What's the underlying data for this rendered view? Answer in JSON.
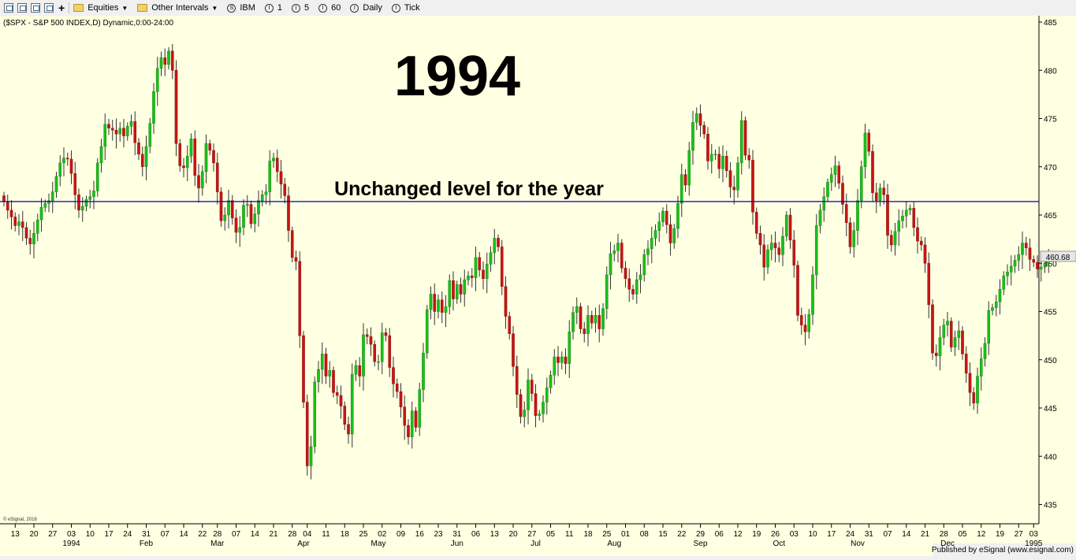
{
  "toolbar": {
    "items": [
      {
        "label": "Equities",
        "icon": "folder-icon",
        "dropdown": true
      },
      {
        "label": "Other Intervals",
        "icon": "folder-icon",
        "dropdown": true
      },
      {
        "label": "IBM",
        "icon": "symbol-circle-icon",
        "glyph": "S"
      },
      {
        "label": "1",
        "icon": "interval-circle-icon",
        "glyph": "I"
      },
      {
        "label": "5",
        "icon": "interval-circle-icon",
        "glyph": "I"
      },
      {
        "label": "60",
        "icon": "interval-circle-icon",
        "glyph": "I"
      },
      {
        "label": "Daily",
        "icon": "interval-circle-icon",
        "glyph": "I"
      },
      {
        "label": "Tick",
        "icon": "interval-circle-icon",
        "glyph": "I"
      }
    ]
  },
  "chart_data": {
    "type": "candlestick",
    "header": "($SPX - S&P 500 INDEX,D) Dynamic,0:00-24:00",
    "title": "1994",
    "annotation": "Unchanged level for the year",
    "reference_line": 466.4,
    "last_price": "460.68",
    "watermark": "© eSignal, 2016",
    "footer": "Published by eSignal (www.esignal.com)",
    "ylim": [
      433,
      485
    ],
    "y_ticks": [
      435,
      440,
      445,
      450,
      455,
      460,
      465,
      470,
      475,
      480,
      485
    ],
    "day_ticks": [
      {
        "i": 3,
        "label": "13"
      },
      {
        "i": 8,
        "label": "20"
      },
      {
        "i": 13,
        "label": "27"
      },
      {
        "i": 18,
        "label": "03"
      },
      {
        "i": 23,
        "label": "10"
      },
      {
        "i": 28,
        "label": "17"
      },
      {
        "i": 33,
        "label": "24"
      },
      {
        "i": 38,
        "label": "31"
      },
      {
        "i": 43,
        "label": "07"
      },
      {
        "i": 48,
        "label": "14"
      },
      {
        "i": 53,
        "label": "22"
      },
      {
        "i": 57,
        "label": "28"
      },
      {
        "i": 62,
        "label": "07"
      },
      {
        "i": 67,
        "label": "14"
      },
      {
        "i": 72,
        "label": "21"
      },
      {
        "i": 77,
        "label": "28"
      },
      {
        "i": 81,
        "label": "04"
      },
      {
        "i": 86,
        "label": "11"
      },
      {
        "i": 91,
        "label": "18"
      },
      {
        "i": 96,
        "label": "25"
      },
      {
        "i": 101,
        "label": "02"
      },
      {
        "i": 106,
        "label": "09"
      },
      {
        "i": 111,
        "label": "16"
      },
      {
        "i": 116,
        "label": "23"
      },
      {
        "i": 121,
        "label": "31"
      },
      {
        "i": 126,
        "label": "06"
      },
      {
        "i": 131,
        "label": "13"
      },
      {
        "i": 136,
        "label": "20"
      },
      {
        "i": 141,
        "label": "27"
      },
      {
        "i": 146,
        "label": "05"
      },
      {
        "i": 151,
        "label": "11"
      },
      {
        "i": 156,
        "label": "18"
      },
      {
        "i": 161,
        "label": "25"
      },
      {
        "i": 166,
        "label": "01"
      },
      {
        "i": 171,
        "label": "08"
      },
      {
        "i": 176,
        "label": "15"
      },
      {
        "i": 181,
        "label": "22"
      },
      {
        "i": 186,
        "label": "29"
      },
      {
        "i": 191,
        "label": "06"
      },
      {
        "i": 196,
        "label": "12"
      },
      {
        "i": 201,
        "label": "19"
      },
      {
        "i": 206,
        "label": "26"
      },
      {
        "i": 211,
        "label": "03"
      },
      {
        "i": 216,
        "label": "10"
      },
      {
        "i": 221,
        "label": "17"
      },
      {
        "i": 226,
        "label": "24"
      },
      {
        "i": 231,
        "label": "31"
      },
      {
        "i": 236,
        "label": "07"
      },
      {
        "i": 241,
        "label": "14"
      },
      {
        "i": 246,
        "label": "21"
      },
      {
        "i": 251,
        "label": "28"
      },
      {
        "i": 256,
        "label": "05"
      },
      {
        "i": 261,
        "label": "12"
      },
      {
        "i": 266,
        "label": "19"
      },
      {
        "i": 271,
        "label": "27"
      },
      {
        "i": 275,
        "label": "03"
      }
    ],
    "period_ticks": [
      {
        "i": 18,
        "label": "1994"
      },
      {
        "i": 38,
        "label": "Feb"
      },
      {
        "i": 57,
        "label": "Mar"
      },
      {
        "i": 80,
        "label": "Apr"
      },
      {
        "i": 100,
        "label": "May"
      },
      {
        "i": 121,
        "label": "Jun"
      },
      {
        "i": 142,
        "label": "Jul"
      },
      {
        "i": 163,
        "label": "Aug"
      },
      {
        "i": 186,
        "label": "Sep"
      },
      {
        "i": 207,
        "label": "Oct"
      },
      {
        "i": 228,
        "label": "Nov"
      },
      {
        "i": 252,
        "label": "Dec"
      },
      {
        "i": 275,
        "label": "1995"
      }
    ],
    "closes": [
      466.4,
      465.5,
      464.8,
      463.9,
      464.3,
      463.7,
      462.6,
      462.0,
      463.1,
      464.5,
      465.8,
      466.2,
      466.5,
      467.4,
      469.0,
      470.4,
      470.9,
      470.8,
      469.3,
      467.1,
      465.5,
      465.9,
      466.6,
      466.9,
      467.5,
      470.4,
      472.1,
      474.4,
      474.0,
      473.8,
      473.4,
      474.0,
      473.2,
      474.2,
      474.7,
      472.5,
      471.3,
      470.0,
      472.1,
      474.5,
      477.8,
      480.2,
      481.3,
      480.6,
      482.0,
      480.0,
      472.4,
      470.1,
      469.9,
      471.1,
      472.9,
      469.1,
      467.8,
      469.5,
      472.4,
      471.7,
      470.4,
      467.4,
      464.4,
      465.0,
      466.5,
      464.7,
      463.2,
      463.7,
      466.0,
      466.1,
      464.1,
      465.1,
      466.5,
      467.1,
      467.4,
      470.6,
      470.9,
      469.5,
      468.2,
      467.0,
      463.4,
      460.6,
      460.2,
      452.5,
      445.6,
      439.0,
      441.0,
      447.7,
      449.0,
      450.6,
      448.3,
      448.9,
      446.6,
      446.3,
      445.2,
      443.3,
      442.3,
      448.5,
      449.4,
      448.3,
      452.6,
      452.4,
      451.6,
      449.8,
      449.8,
      452.8,
      452.5,
      449.2,
      447.5,
      446.7,
      445.1,
      443.2,
      442.0,
      444.7,
      443.0,
      446.9,
      450.7,
      455.2,
      456.8,
      455.0,
      456.2,
      454.9,
      455.5,
      458.2,
      456.3,
      457.8,
      456.8,
      458.3,
      458.7,
      458.5,
      460.6,
      459.3,
      458.4,
      459.9,
      461.1,
      462.6,
      461.7,
      457.6,
      454.5,
      452.7,
      449.3,
      446.4,
      444.1,
      444.8,
      447.9,
      446.5,
      444.2,
      444.4,
      445.6,
      447.1,
      448.4,
      450.3,
      449.7,
      450.3,
      449.6,
      452.9,
      454.9,
      455.5,
      453.2,
      452.7,
      454.6,
      453.8,
      454.6,
      453.2,
      455.3,
      458.8,
      461.0,
      461.3,
      462.1,
      459.5,
      458.4,
      457.3,
      456.8,
      458.3,
      458.8,
      460.9,
      461.5,
      462.6,
      463.4,
      464.3,
      465.4,
      464.0,
      462.1,
      463.6,
      466.2,
      469.2,
      468.1,
      471.7,
      474.6,
      475.5,
      474.3,
      473.4,
      470.6,
      471.3,
      471.3,
      469.8,
      471.1,
      469.6,
      467.9,
      467.6,
      470.4,
      474.8,
      471.2,
      470.7,
      465.3,
      463.1,
      461.9,
      459.6,
      461.4,
      462.1,
      461.6,
      460.9,
      462.8,
      465.0,
      462.4,
      459.8,
      454.6,
      453.6,
      452.9,
      454.7,
      458.8,
      463.9,
      465.5,
      466.9,
      468.4,
      469.2,
      470.1,
      468.3,
      466.1,
      464.2,
      461.7,
      463.4,
      466.5,
      470.0,
      473.5,
      471.6,
      467.3,
      466.5,
      467.8,
      467.1,
      462.9,
      461.9,
      463.3,
      464.4,
      464.9,
      465.5,
      465.7,
      463.7,
      462.3,
      461.9,
      460.0,
      455.7,
      450.7,
      450.4,
      452.3,
      453.6,
      454.0,
      451.3,
      452.3,
      453.0,
      450.6,
      448.6,
      446.6,
      445.5,
      448.3,
      450.1,
      451.7,
      455.1,
      455.4,
      456.0,
      457.3,
      458.7,
      459.1,
      459.7,
      460.3,
      460.9,
      462.1,
      461.6,
      460.4,
      460.1,
      459.4,
      459.6,
      460.0,
      460.68
    ]
  }
}
